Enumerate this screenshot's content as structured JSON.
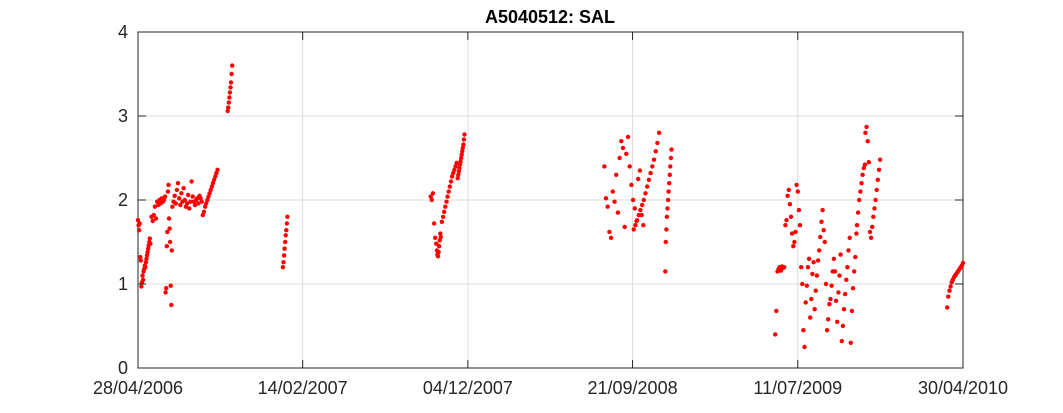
{
  "chart_data": {
    "type": "scatter",
    "title": "A5040512: SAL",
    "xlabel": "",
    "ylabel": "",
    "x_type": "date",
    "xlim": [
      "2006-04-28",
      "2010-04-30"
    ],
    "ylim": [
      0,
      4
    ],
    "grid": true,
    "legend": "none",
    "marker_color": "#ff0000",
    "x_ticks": [
      {
        "value": "2006-04-28",
        "label": "28/04/2006"
      },
      {
        "value": "2007-02-14",
        "label": "14/02/2007"
      },
      {
        "value": "2007-12-04",
        "label": "04/12/2007"
      },
      {
        "value": "2008-09-21",
        "label": "21/09/2008"
      },
      {
        "value": "2009-07-11",
        "label": "11/07/2009"
      },
      {
        "value": "2010-04-30",
        "label": "30/04/2010"
      }
    ],
    "y_ticks": [
      {
        "value": 0,
        "label": "0"
      },
      {
        "value": 1,
        "label": "1"
      },
      {
        "value": 2,
        "label": "2"
      },
      {
        "value": 3,
        "label": "3"
      },
      {
        "value": 4,
        "label": "4"
      }
    ],
    "series": [
      {
        "x": [
          "2006-04-28",
          "2006-04-29",
          "2006-04-30",
          "2006-05-01",
          "2006-05-02",
          "2006-05-03",
          "2006-05-04",
          "2006-05-05",
          "2006-05-06",
          "2006-05-07",
          "2006-05-08",
          "2006-05-09",
          "2006-05-10",
          "2006-05-11",
          "2006-05-12",
          "2006-05-13",
          "2006-05-14",
          "2006-05-15",
          "2006-05-16",
          "2006-05-17",
          "2006-05-18",
          "2006-05-19",
          "2006-05-20",
          "2006-05-22",
          "2006-05-24",
          "2006-05-26",
          "2006-05-28",
          "2006-05-30",
          "2006-06-01",
          "2006-06-03",
          "2006-06-05",
          "2006-06-07",
          "2006-06-09",
          "2006-06-11",
          "2006-06-13",
          "2006-06-15",
          "2006-06-16",
          "2006-06-17",
          "2006-06-18",
          "2006-06-19",
          "2006-06-20",
          "2006-06-21",
          "2006-06-22",
          "2006-06-23",
          "2006-06-24",
          "2006-06-25",
          "2006-06-26",
          "2006-06-27",
          "2006-06-28",
          "2006-06-30",
          "2006-07-02",
          "2006-07-04",
          "2006-07-06",
          "2006-07-08",
          "2006-07-10",
          "2006-07-12",
          "2006-07-14",
          "2006-07-16",
          "2006-07-18",
          "2006-07-20",
          "2006-07-22",
          "2006-07-24",
          "2006-07-26",
          "2006-07-28",
          "2006-07-30",
          "2006-08-01",
          "2006-08-03",
          "2006-08-05",
          "2006-08-07",
          "2006-08-09",
          "2006-08-11",
          "2006-08-13",
          "2006-08-15",
          "2006-08-17",
          "2006-08-19",
          "2006-08-21",
          "2006-08-23",
          "2006-08-25",
          "2006-08-27",
          "2006-08-29",
          "2006-08-31",
          "2006-09-02",
          "2006-09-04",
          "2006-09-06",
          "2006-09-08",
          "2006-09-10",
          "2006-09-12",
          "2006-09-14",
          "2006-09-16",
          "2006-10-04",
          "2006-10-05",
          "2006-10-06",
          "2006-10-07",
          "2006-10-08",
          "2006-10-09",
          "2006-10-10",
          "2006-10-11",
          "2006-10-12",
          "2007-01-10",
          "2007-01-11",
          "2007-01-12",
          "2007-01-13",
          "2007-01-14",
          "2007-01-15",
          "2007-01-16",
          "2007-01-17",
          "2007-01-18",
          "2007-09-29",
          "2007-10-01",
          "2007-10-03",
          "2007-10-05",
          "2007-10-07",
          "2007-10-09",
          "2007-10-10",
          "2007-10-11",
          "2007-10-12",
          "2007-10-13",
          "2007-10-14",
          "2007-10-15",
          "2007-10-16",
          "2007-10-17",
          "2007-10-19",
          "2007-10-21",
          "2007-10-23",
          "2007-10-25",
          "2007-10-27",
          "2007-10-29",
          "2007-10-31",
          "2007-11-02",
          "2007-11-04",
          "2007-11-06",
          "2007-11-08",
          "2007-11-10",
          "2007-11-12",
          "2007-11-14",
          "2007-11-16",
          "2007-11-17",
          "2007-11-18",
          "2007-11-19",
          "2007-11-20",
          "2007-11-21",
          "2007-11-22",
          "2007-11-23",
          "2007-11-24",
          "2007-11-25",
          "2007-11-26",
          "2007-11-27",
          "2007-11-28",
          "2008-08-02",
          "2008-08-05",
          "2008-08-08",
          "2008-08-11",
          "2008-08-14",
          "2008-08-17",
          "2008-08-20",
          "2008-08-23",
          "2008-08-26",
          "2008-08-29",
          "2008-09-01",
          "2008-09-04",
          "2008-09-07",
          "2008-09-10",
          "2008-09-13",
          "2008-09-16",
          "2008-09-19",
          "2008-09-22",
          "2008-09-25",
          "2008-09-28",
          "2008-10-01",
          "2008-10-04",
          "2008-10-07",
          "2008-10-10",
          "2008-09-23",
          "2008-09-26",
          "2008-09-29",
          "2008-10-02",
          "2008-10-05",
          "2008-10-08",
          "2008-10-11",
          "2008-10-14",
          "2008-10-17",
          "2008-10-20",
          "2008-10-23",
          "2008-10-26",
          "2008-10-29",
          "2008-11-01",
          "2008-11-04",
          "2008-11-07",
          "2008-11-18",
          "2008-11-19",
          "2008-11-20",
          "2008-11-21",
          "2008-11-22",
          "2008-11-23",
          "2008-11-24",
          "2008-11-25",
          "2008-11-26",
          "2008-11-27",
          "2008-11-28",
          "2008-11-29",
          "2009-06-01",
          "2009-06-03",
          "2009-06-05",
          "2009-06-07",
          "2009-06-09",
          "2009-06-11",
          "2009-06-13",
          "2009-06-15",
          "2009-06-17",
          "2009-06-19",
          "2009-06-21",
          "2009-06-23",
          "2009-06-25",
          "2009-06-27",
          "2009-06-29",
          "2009-07-01",
          "2009-07-03",
          "2009-07-05",
          "2009-07-07",
          "2009-07-09",
          "2009-07-11",
          "2009-07-13",
          "2009-07-15",
          "2009-07-17",
          "2009-07-19",
          "2009-07-21",
          "2009-07-23",
          "2009-07-25",
          "2009-07-27",
          "2009-07-29",
          "2009-07-31",
          "2009-08-02",
          "2009-08-04",
          "2009-08-06",
          "2009-08-08",
          "2009-08-10",
          "2009-08-12",
          "2009-08-14",
          "2009-08-16",
          "2009-08-18",
          "2009-08-20",
          "2009-08-22",
          "2009-08-24",
          "2009-08-26",
          "2009-08-28",
          "2009-08-30",
          "2009-09-01",
          "2009-09-03",
          "2009-09-05",
          "2009-09-07",
          "2009-09-09",
          "2009-09-11",
          "2009-09-13",
          "2009-09-15",
          "2009-09-17",
          "2009-09-19",
          "2009-09-21",
          "2009-09-23",
          "2009-09-25",
          "2009-09-27",
          "2009-09-29",
          "2009-10-01",
          "2009-10-03",
          "2009-10-05",
          "2009-10-07",
          "2009-10-09",
          "2009-10-11",
          "2009-10-13",
          "2009-10-15",
          "2009-10-17",
          "2009-10-19",
          "2009-10-21",
          "2009-10-23",
          "2009-10-24",
          "2009-10-26",
          "2009-10-28",
          "2009-10-30",
          "2009-11-01",
          "2009-11-03",
          "2009-11-05",
          "2009-11-07",
          "2009-11-08",
          "2009-11-10",
          "2009-11-12",
          "2009-11-14",
          "2009-11-16",
          "2009-11-18",
          "2009-11-20",
          "2009-11-22",
          "2009-11-24",
          "2009-11-26",
          "2009-11-28",
          "2009-11-30",
          "2009-12-02",
          "2009-12-04",
          "2010-04-02",
          "2010-04-04",
          "2010-04-06",
          "2010-04-08",
          "2010-04-10",
          "2010-04-12",
          "2010-04-14",
          "2010-04-16",
          "2010-04-18",
          "2010-04-20",
          "2010-04-22",
          "2010-04-24",
          "2010-04-26",
          "2010-04-28",
          "2010-04-30"
        ],
        "y": [
          1.76,
          1.7,
          1.64,
          1.72,
          1.32,
          1.28,
          0.97,
          1.02,
          1.1,
          1.05,
          1.15,
          1.18,
          1.22,
          1.2,
          1.26,
          1.3,
          1.34,
          1.38,
          1.42,
          1.46,
          1.5,
          1.54,
          1.48,
          1.8,
          1.75,
          1.82,
          1.92,
          1.78,
          1.98,
          1.94,
          2.0,
          1.96,
          2.02,
          1.98,
          2.0,
          2.04,
          0.9,
          0.95,
          1.45,
          1.62,
          2.1,
          2.18,
          1.78,
          1.66,
          1.5,
          0.98,
          0.75,
          1.4,
          1.92,
          1.98,
          2.05,
          1.96,
          2.12,
          2.2,
          2.02,
          1.94,
          2.08,
          1.98,
          2.14,
          2.0,
          1.92,
          1.96,
          2.06,
          1.9,
          1.98,
          2.22,
          2.04,
          1.98,
          1.94,
          2.0,
          2.02,
          1.96,
          2.05,
          2.02,
          1.98,
          1.82,
          1.86,
          1.92,
          1.96,
          2.0,
          2.04,
          2.08,
          2.12,
          2.16,
          2.2,
          2.24,
          2.28,
          2.32,
          2.36,
          3.06,
          3.1,
          3.16,
          3.22,
          3.28,
          3.34,
          3.4,
          3.5,
          3.6,
          1.2,
          1.26,
          1.34,
          1.42,
          1.5,
          1.58,
          1.64,
          1.72,
          1.8,
          2.04,
          2.0,
          2.08,
          1.72,
          1.55,
          1.48,
          1.4,
          1.35,
          1.33,
          1.38,
          1.45,
          1.52,
          1.6,
          1.56,
          1.74,
          1.8,
          1.86,
          1.92,
          1.98,
          2.04,
          2.1,
          2.16,
          2.22,
          2.28,
          2.32,
          2.36,
          2.4,
          2.44,
          2.26,
          2.3,
          2.34,
          2.38,
          2.42,
          2.46,
          2.5,
          2.54,
          2.58,
          2.62,
          2.66,
          2.72,
          2.78,
          2.4,
          2.02,
          1.92,
          1.62,
          1.55,
          2.1,
          1.98,
          2.3,
          1.85,
          2.5,
          2.7,
          2.62,
          1.68,
          2.55,
          2.75,
          2.4,
          2.18,
          2.0,
          1.9,
          1.75,
          2.25,
          2.35,
          1.82,
          1.7,
          1.65,
          1.7,
          1.76,
          1.82,
          1.88,
          1.94,
          2.0,
          2.08,
          2.16,
          2.24,
          2.32,
          2.4,
          2.48,
          2.58,
          2.68,
          2.8,
          1.15,
          1.5,
          1.65,
          1.8,
          1.9,
          2.0,
          2.1,
          2.2,
          2.3,
          2.4,
          2.5,
          2.6,
          0.4,
          0.68,
          1.15,
          1.18,
          1.2,
          1.16,
          1.21,
          1.19,
          1.2,
          1.7,
          1.76,
          2.05,
          2.12,
          1.95,
          1.8,
          1.6,
          1.45,
          1.5,
          1.62,
          2.18,
          2.1,
          1.88,
          1.7,
          1.2,
          1.0,
          0.45,
          0.25,
          0.78,
          0.98,
          1.2,
          1.3,
          0.6,
          0.82,
          1.12,
          1.26,
          0.7,
          0.92,
          1.1,
          1.28,
          1.4,
          1.56,
          1.74,
          1.88,
          1.64,
          1.5,
          1.0,
          0.45,
          0.58,
          0.76,
          0.82,
          0.98,
          1.15,
          1.3,
          1.15,
          0.8,
          0.55,
          0.9,
          1.1,
          1.35,
          0.32,
          0.5,
          0.7,
          0.88,
          1.05,
          1.2,
          1.4,
          1.55,
          0.3,
          0.68,
          0.95,
          1.15,
          1.32,
          1.6,
          1.7,
          1.85,
          2.0,
          2.1,
          2.2,
          2.3,
          2.38,
          2.42,
          2.8,
          2.87,
          2.7,
          2.45,
          1.62,
          1.55,
          1.68,
          1.8,
          1.9,
          2.0,
          2.12,
          2.24,
          2.36,
          2.48,
          0.72,
          0.85,
          0.92,
          0.97,
          1.02,
          1.05,
          1.08,
          1.1,
          1.12,
          1.14,
          1.16,
          1.18,
          1.2,
          1.22,
          1.25
        ]
      }
    ]
  }
}
